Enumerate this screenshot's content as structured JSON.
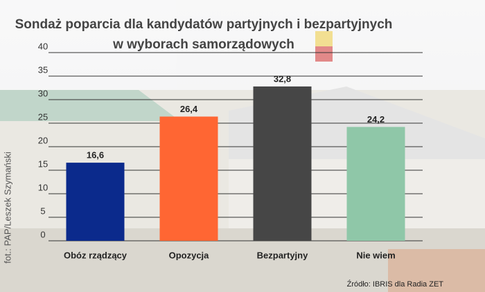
{
  "chart_data": {
    "type": "bar",
    "title": [
      "Sondaż poparcia dla kandydatów partyjnych i bezpartyjnych",
      "w wyborach samorządowych"
    ],
    "categories": [
      "Obóz rządzący",
      "Opozycja",
      "Bezpartyjny",
      "Nie wiem"
    ],
    "values": [
      16.6,
      26.4,
      32.8,
      24.2
    ],
    "value_labels": [
      "16,6",
      "26,4",
      "32,8",
      "24,2"
    ],
    "colors": [
      "#0b2a8c",
      "#ff6633",
      "#464646",
      "#8fc7a8"
    ],
    "ylim": [
      0,
      40
    ],
    "yticks": [
      0,
      5,
      10,
      15,
      20,
      25,
      30,
      35,
      40
    ],
    "grid": true,
    "source": "Źródło: IBRIS dla Radia ZET",
    "photo_credit": "fot.: PAP/Leszek Szymański"
  }
}
